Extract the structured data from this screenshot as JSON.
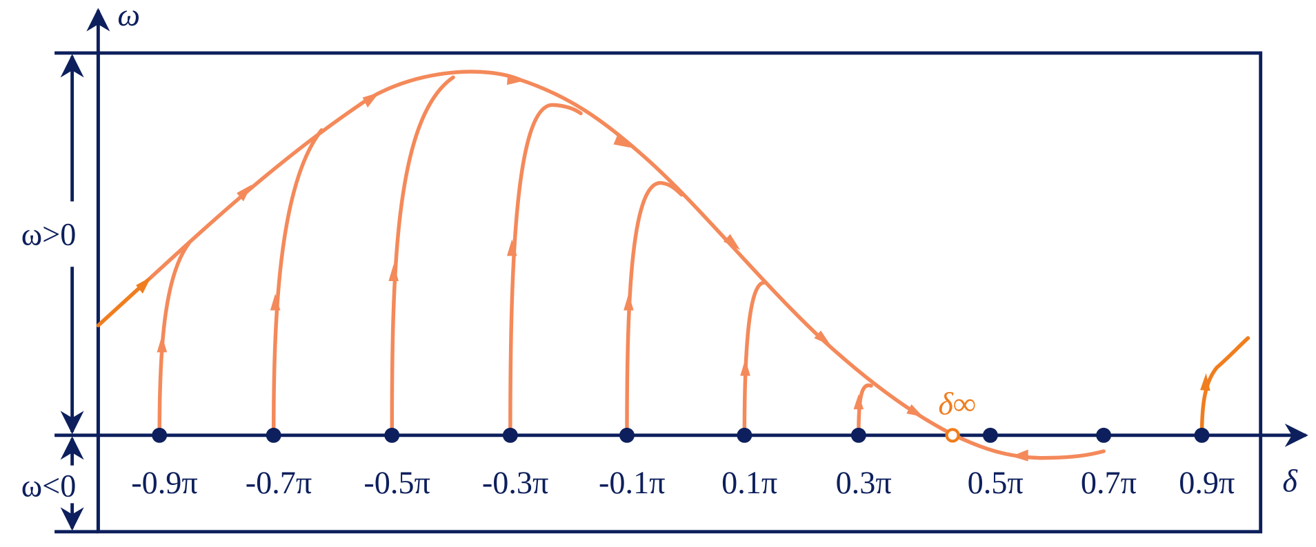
{
  "axes": {
    "y_label": "ω",
    "x_label": "δ",
    "upper_label": "ω>0",
    "lower_label": "ω<0"
  },
  "ticks": [
    "-0.9π",
    "-0.7π",
    "-0.5π",
    "-0.3π",
    "-0.1π",
    "0.1π",
    "0.3π",
    "0.5π",
    "0.7π",
    "0.9π"
  ],
  "annotation": "δ∞"
}
